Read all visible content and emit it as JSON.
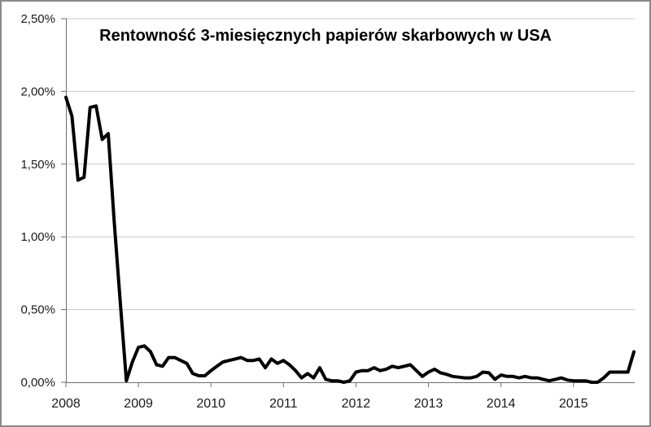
{
  "chart_data": {
    "type": "line",
    "title": "Rentowność 3-miesięcznych papierów skarbowych w USA",
    "xlabel": "",
    "ylabel": "",
    "x_tick_labels": [
      "2008",
      "2009",
      "2010",
      "2011",
      "2012",
      "2013",
      "2014",
      "2015"
    ],
    "y_tick_labels": [
      "0,00%",
      "0,50%",
      "1,00%",
      "1,50%",
      "2,00%",
      "2,50%"
    ],
    "ylim": [
      0,
      2.5
    ],
    "y_tick_step": 0.5,
    "frequency": "monthly",
    "x_start": "2008-01",
    "x_end": "2015-11",
    "points_per_year": 12,
    "grid": true,
    "legend": "none",
    "colors": {
      "line": "#000000",
      "grid": "#c9c9c9",
      "axis": "#6e6e6e",
      "tick_label": "#1a1a1a",
      "frame_border": "#898989",
      "background": "#ffffff"
    },
    "series": [
      {
        "name": "Rentowność 3-miesięcznych papierów skarbowych w USA",
        "unit": "%",
        "values": [
          1.96,
          1.83,
          1.39,
          1.41,
          1.89,
          1.9,
          1.67,
          1.71,
          1.1,
          0.55,
          0.01,
          0.14,
          0.24,
          0.25,
          0.21,
          0.12,
          0.11,
          0.17,
          0.17,
          0.15,
          0.13,
          0.06,
          0.045,
          0.045,
          0.08,
          0.11,
          0.14,
          0.15,
          0.16,
          0.17,
          0.15,
          0.15,
          0.16,
          0.1,
          0.16,
          0.13,
          0.15,
          0.12,
          0.08,
          0.03,
          0.06,
          0.03,
          0.1,
          0.02,
          0.01,
          0.01,
          0.0,
          0.01,
          0.07,
          0.08,
          0.08,
          0.1,
          0.08,
          0.09,
          0.11,
          0.1,
          0.11,
          0.12,
          0.08,
          0.04,
          0.07,
          0.09,
          0.065,
          0.055,
          0.04,
          0.035,
          0.03,
          0.03,
          0.04,
          0.07,
          0.065,
          0.02,
          0.05,
          0.04,
          0.04,
          0.03,
          0.04,
          0.03,
          0.03,
          0.02,
          0.01,
          0.02,
          0.03,
          0.015,
          0.01,
          0.01,
          0.01,
          0.0,
          0.0,
          0.03,
          0.07,
          0.07,
          0.07,
          0.07,
          0.21
        ]
      }
    ]
  }
}
